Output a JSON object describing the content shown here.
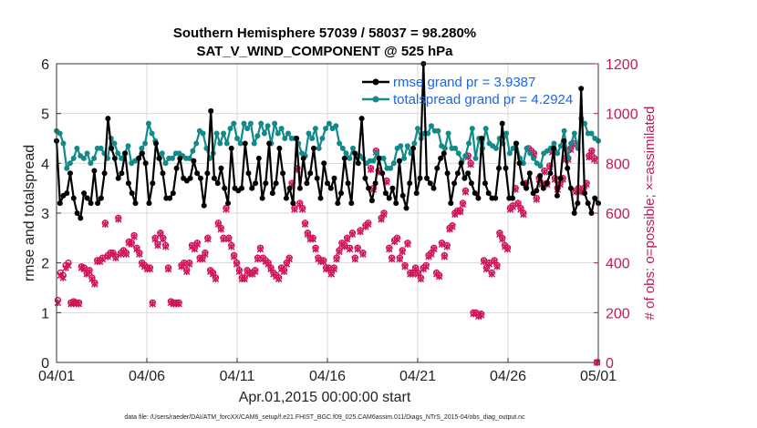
{
  "chart_data": {
    "type": "line",
    "title_line1": "Southern Hemisphere 57039 / 58037 = 98.280%",
    "title_line2": "SAT_V_WIND_COMPONENT @ 525 hPa",
    "xlabel": "Apr.01,2015 00:00:00 start",
    "ylabel_left": "rmse and totalspread",
    "ylabel_right": "# of obs: o=possible; ×=assimilated",
    "footnote": "data file: /Users/raeder/DAI/ATM_forcXX/CAM6_setup/f.e21.FHIST_BGC.f09_025.CAM6assim.011/Diags_NTrS_2015-04/obs_diag_output.nc",
    "x_ticks": [
      {
        "day": 0,
        "label": "04/01"
      },
      {
        "day": 5,
        "label": "04/06"
      },
      {
        "day": 10,
        "label": "04/11"
      },
      {
        "day": 15,
        "label": "04/16"
      },
      {
        "day": 20,
        "label": "04/21"
      },
      {
        "day": 25,
        "label": "04/26"
      },
      {
        "day": 30,
        "label": "05/01"
      }
    ],
    "xlim": [
      0,
      30
    ],
    "ylim_left": [
      0,
      6
    ],
    "ylim_right": [
      0,
      1200
    ],
    "yticks_left": [
      "0",
      "1",
      "2",
      "3",
      "4",
      "5",
      "6"
    ],
    "yticks_right": [
      "0",
      "200",
      "400",
      "600",
      "800",
      "1000",
      "1200"
    ],
    "colors": {
      "rmse": "#000000",
      "spread": "#138a8a",
      "obs": "#d0135a",
      "legend_text": "#1a66e6",
      "right_axis": "#c2185b"
    },
    "legend": [
      {
        "series": "rmse",
        "label": "rmse grand pr = 3.9387"
      },
      {
        "series": "spread",
        "label": "totalspread grand pr = 4.2924"
      }
    ],
    "series": [
      {
        "name": "rmse",
        "axis": "left",
        "values": [
          4.45,
          3.2,
          3.35,
          3.4,
          3.8,
          3.3,
          3.0,
          2.9,
          3.4,
          3.3,
          3.2,
          3.85,
          3.2,
          3.3,
          3.8,
          4.9,
          4.3,
          4.1,
          3.7,
          3.8,
          4.2,
          3.6,
          3.4,
          3.2,
          4.1,
          4.2,
          4.0,
          3.2,
          3.6,
          4.4,
          4.1,
          3.8,
          3.3,
          3.3,
          3.4,
          3.9,
          4.1,
          3.7,
          3.65,
          3.7,
          4.05,
          3.8,
          3.7,
          3.15,
          3.8,
          5.05,
          3.7,
          3.6,
          3.9,
          3.5,
          3.2,
          4.3,
          3.5,
          3.45,
          3.5,
          4.4,
          3.8,
          3.5,
          3.6,
          4.1,
          3.3,
          3.6,
          4.4,
          3.4,
          3.6,
          4.3,
          3.8,
          3.3,
          3.5,
          3.2,
          4.5,
          3.5,
          4.1,
          3.6,
          3.8,
          4.3,
          3.7,
          3.3,
          4.0,
          3.6,
          3.5,
          3.7,
          3.2,
          3.4,
          4.1,
          3.6,
          3.2,
          4.2,
          4.0,
          4.9,
          3.7,
          3.5,
          3.25,
          3.6,
          4.1,
          3.8,
          3.4,
          3.3,
          3.5,
          3.2,
          4.05,
          3.35,
          3.1,
          3.6,
          4.3,
          3.4,
          3.7,
          6.0,
          3.7,
          3.6,
          3.5,
          3.9,
          4.1,
          4.2,
          3.8,
          3.2,
          3.6,
          3.8,
          4.0,
          3.7,
          3.8,
          3.6,
          3.4,
          3.3,
          4.5,
          3.6,
          3.4,
          3.3,
          3.3,
          3.9,
          4.8,
          3.9,
          3.3,
          3.3,
          4.4,
          4.0,
          3.6,
          3.5,
          3.8,
          3.4,
          3.45,
          3.75,
          3.5,
          3.6,
          3.8,
          4.3,
          3.35,
          3.7,
          4.45,
          3.9,
          3.5,
          3.0,
          3.2,
          5.5,
          3.4,
          3.2,
          3.0,
          3.3,
          3.2
        ]
      },
      {
        "name": "spread",
        "axis": "left",
        "values": [
          4.65,
          4.6,
          4.4,
          3.9,
          4.0,
          4.1,
          4.3,
          4.15,
          4.1,
          4.2,
          4.0,
          4.1,
          4.3,
          4.3,
          4.2,
          4.1,
          4.5,
          4.4,
          4.2,
          4.1,
          4.2,
          4.35,
          4.0,
          4.05,
          4.1,
          4.3,
          4.4,
          4.8,
          4.6,
          4.45,
          4.1,
          4.2,
          4.0,
          4.1,
          4.1,
          4.2,
          4.2,
          4.15,
          4.1,
          4.1,
          4.25,
          4.4,
          4.65,
          4.6,
          4.3,
          4.1,
          4.2,
          4.6,
          4.4,
          4.6,
          4.4,
          4.7,
          4.8,
          4.5,
          4.4,
          4.8,
          4.7,
          4.8,
          4.4,
          4.55,
          4.8,
          4.6,
          4.75,
          4.4,
          4.8,
          4.6,
          4.7,
          4.5,
          4.6,
          4.5,
          4.5,
          4.4,
          4.2,
          4.15,
          4.6,
          4.5,
          4.7,
          4.3,
          4.5,
          4.7,
          4.8,
          4.7,
          4.75,
          4.4,
          4.3,
          4.2,
          4.1,
          4.3,
          4.15,
          4.15,
          4.1,
          4.0,
          4.05,
          4.05,
          4.2,
          4.1,
          4.1,
          3.9,
          3.9,
          4.0,
          4.3,
          4.35,
          4.1,
          4.35,
          4.2,
          4.4,
          4.7,
          4.5,
          4.6,
          4.6,
          4.75,
          4.65,
          4.65,
          4.35,
          4.3,
          4.6,
          4.3,
          4.3,
          4.2,
          4.05,
          4.15,
          4.4,
          4.7,
          4.1,
          4.5,
          4.3,
          4.7,
          4.4,
          4.35,
          4.3,
          4.5,
          4.4,
          4.6,
          4.2,
          4.3,
          4.4,
          4.1,
          4.0,
          4.3,
          4.2,
          4.1,
          4.0,
          3.95,
          4.2,
          4.25,
          4.3,
          4.4,
          4.2,
          4.35,
          4.65,
          4.1,
          4.4,
          4.6,
          4.3,
          4.9,
          4.8,
          4.6,
          4.6,
          4.5,
          4.45
        ]
      },
      {
        "name": "obs_possible",
        "axis": "right",
        "values": [
          250,
          360,
          350,
          390,
          400,
          240,
          245,
          240,
          240,
          385,
          380,
          360,
          370,
          340,
          320,
          410,
          410,
          420,
          560,
          430,
          440,
          440,
          425,
          580,
          440,
          450,
          440,
          485,
          480,
          510,
          460,
          440,
          400,
          390,
          380,
          380,
          240,
          500,
          475,
          520,
          500,
          470,
          380,
          245,
          240,
          240,
          240,
          390,
          400,
          370,
          400,
          470,
          460,
          480,
          420,
          420,
          440,
          500,
          370,
          360,
          340,
          560,
          540,
          500,
          620,
          500,
          470,
          430,
          400,
          370,
          340,
          340,
          370,
          360,
          360,
          370,
          420,
          460,
          420,
          410,
          400,
          380,
          360,
          350,
          340,
          380,
          370,
          400,
          420,
          720,
          620,
          780,
          640,
          620,
          560,
          520,
          500,
          500,
          460,
          420,
          410,
          410,
          380,
          380,
          360,
          380,
          420,
          450,
          480,
          470,
          500,
          460,
          520,
          420,
          460,
          530,
          440,
          550,
          560,
          780,
          700,
          850,
          770,
          580,
          600,
          730,
          460,
          420,
          490,
          500,
          420,
          450,
          390,
          480,
          360,
          360,
          380,
          360,
          340,
          380,
          390,
          430,
          440,
          460,
          360,
          350,
          480,
          430,
          470,
          540,
          550,
          600,
          610,
          610,
          640,
          690,
          830,
          800,
          200,
          200,
          190,
          195,
          410,
          380,
          400,
          360,
          410,
          390,
          520,
          500,
          470,
          460,
          620,
          630,
          700,
          640,
          620,
          600,
          720,
          860,
          850,
          840,
          660,
          740,
          720,
          770,
          720,
          790,
          850,
          740,
          700,
          720,
          740,
          820,
          820,
          860,
          880,
          690,
          700,
          690,
          700,
          720,
          830,
          850,
          820,
          0
        ]
      },
      {
        "name": "obs_assimilated",
        "axis": "right",
        "values": [
          240,
          350,
          340,
          380,
          390,
          235,
          240,
          235,
          235,
          380,
          375,
          355,
          365,
          335,
          315,
          405,
          405,
          415,
          555,
          425,
          435,
          435,
          420,
          575,
          435,
          445,
          435,
          480,
          475,
          505,
          455,
          435,
          395,
          385,
          375,
          375,
          235,
          495,
          470,
          515,
          495,
          465,
          375,
          240,
          235,
          235,
          235,
          385,
          395,
          365,
          395,
          465,
          455,
          475,
          415,
          415,
          435,
          495,
          365,
          355,
          335,
          555,
          535,
          495,
          615,
          495,
          465,
          425,
          395,
          365,
          335,
          335,
          365,
          355,
          355,
          365,
          415,
          455,
          415,
          405,
          395,
          375,
          355,
          345,
          335,
          375,
          365,
          395,
          415,
          715,
          615,
          775,
          635,
          615,
          555,
          515,
          495,
          495,
          455,
          415,
          405,
          405,
          375,
          375,
          355,
          375,
          415,
          445,
          475,
          465,
          495,
          455,
          515,
          415,
          455,
          525,
          435,
          545,
          555,
          775,
          695,
          845,
          765,
          575,
          595,
          725,
          455,
          415,
          485,
          495,
          415,
          445,
          385,
          475,
          355,
          355,
          375,
          355,
          335,
          375,
          385,
          425,
          435,
          455,
          355,
          345,
          475,
          425,
          465,
          535,
          545,
          595,
          605,
          605,
          635,
          685,
          825,
          795,
          195,
          195,
          185,
          190,
          405,
          375,
          395,
          355,
          405,
          385,
          515,
          495,
          465,
          455,
          615,
          625,
          695,
          635,
          615,
          595,
          715,
          855,
          845,
          835,
          655,
          735,
          715,
          765,
          715,
          785,
          845,
          735,
          695,
          715,
          735,
          815,
          815,
          855,
          875,
          685,
          695,
          685,
          695,
          715,
          825,
          845,
          815,
          0
        ]
      }
    ]
  }
}
